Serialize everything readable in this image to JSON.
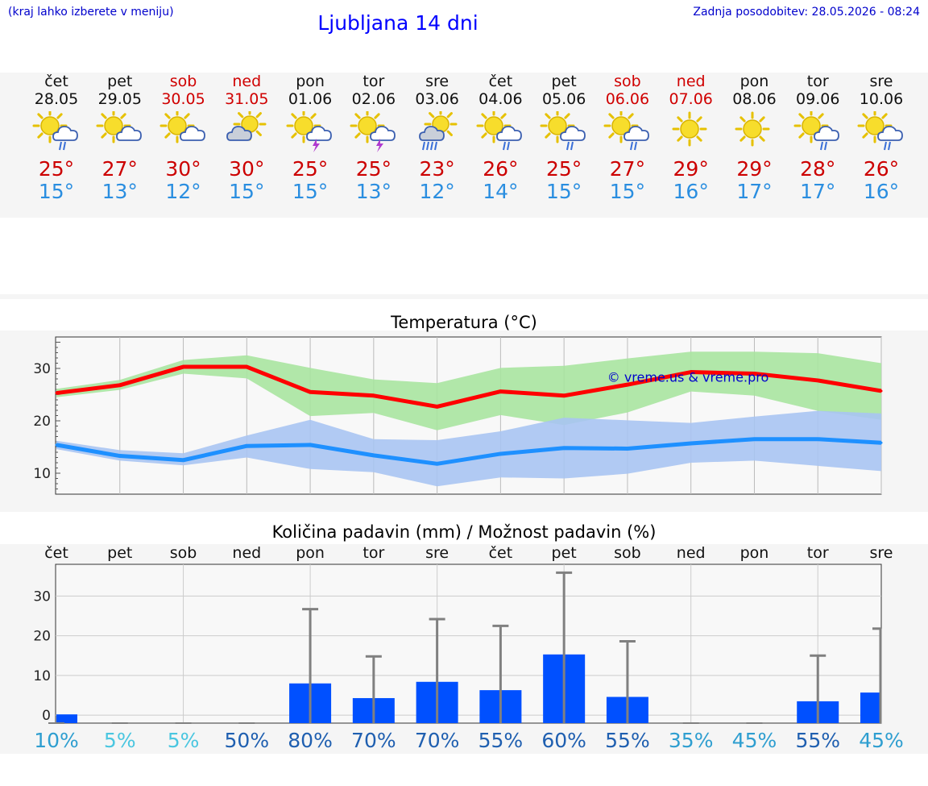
{
  "header": {
    "hint": "(kraj lahko izberete v meniju)",
    "title": "Ljubljana 14 dni",
    "updated": "Zadnja posodobitev: 28.05.2026 - 08:24"
  },
  "days": [
    {
      "name": "čet",
      "date": "28.05",
      "weekend": false,
      "icon": "sun-cloud-rain-icon",
      "kind": "suncloudrain",
      "tmax": "25°",
      "tmin": "15°"
    },
    {
      "name": "pet",
      "date": "29.05",
      "weekend": false,
      "icon": "sun-cloud-icon",
      "kind": "suncloud",
      "tmax": "27°",
      "tmin": "13°"
    },
    {
      "name": "sob",
      "date": "30.05",
      "weekend": true,
      "icon": "sun-cloud-icon",
      "kind": "suncloud",
      "tmax": "30°",
      "tmin": "12°"
    },
    {
      "name": "ned",
      "date": "31.05",
      "weekend": true,
      "icon": "cloud-sun-icon",
      "kind": "cloudsun",
      "tmax": "30°",
      "tmin": "15°"
    },
    {
      "name": "pon",
      "date": "01.06",
      "weekend": false,
      "icon": "sun-cloud-thunder-icon",
      "kind": "suncloudthunder",
      "tmax": "25°",
      "tmin": "15°"
    },
    {
      "name": "tor",
      "date": "02.06",
      "weekend": false,
      "icon": "sun-cloud-thunder-icon",
      "kind": "suncloudthunder",
      "tmax": "25°",
      "tmin": "13°"
    },
    {
      "name": "sre",
      "date": "03.06",
      "weekend": false,
      "icon": "cloud-heavy-rain-icon",
      "kind": "cloudheavyrain",
      "tmax": "23°",
      "tmin": "12°"
    },
    {
      "name": "čet",
      "date": "04.06",
      "weekend": false,
      "icon": "sun-cloud-rain-icon",
      "kind": "suncloudrain",
      "tmax": "26°",
      "tmin": "14°"
    },
    {
      "name": "pet",
      "date": "05.06",
      "weekend": false,
      "icon": "sun-cloud-rain-icon",
      "kind": "suncloudrain",
      "tmax": "25°",
      "tmin": "15°"
    },
    {
      "name": "sob",
      "date": "06.06",
      "weekend": true,
      "icon": "sun-cloud-rain-icon",
      "kind": "suncloudrain",
      "tmax": "27°",
      "tmin": "15°"
    },
    {
      "name": "ned",
      "date": "07.06",
      "weekend": true,
      "icon": "sun-icon",
      "kind": "sun",
      "tmax": "29°",
      "tmin": "16°"
    },
    {
      "name": "pon",
      "date": "08.06",
      "weekend": false,
      "icon": "sun-icon",
      "kind": "sun",
      "tmax": "29°",
      "tmin": "17°"
    },
    {
      "name": "tor",
      "date": "09.06",
      "weekend": false,
      "icon": "sun-cloud-rain-icon",
      "kind": "suncloudrain",
      "tmax": "28°",
      "tmin": "17°"
    },
    {
      "name": "sre",
      "date": "10.06",
      "weekend": false,
      "icon": "sun-cloud-rain-icon",
      "kind": "suncloudrain",
      "tmax": "26°",
      "tmin": "16°"
    }
  ],
  "colors": {
    "max": "#cc0000",
    "min": "#2a8ee0",
    "max_line": "#ff0000",
    "min_line": "#1e90ff",
    "max_band": "#a8e4a0",
    "min_band": "#a9c4f2",
    "precip_bar": "#0050ff",
    "error_bar": "#808080"
  },
  "chart_data": [
    {
      "type": "line",
      "title": "Temperatura (°C)",
      "watermark": "© vreme.us & vreme.pro",
      "x": [
        "28.05",
        "29.05",
        "30.05",
        "31.05",
        "01.06",
        "02.06",
        "03.06",
        "04.06",
        "05.06",
        "06.06",
        "07.06",
        "08.06",
        "09.06",
        "10.06"
      ],
      "ylim": [
        6,
        36
      ],
      "yticks": [
        10,
        20,
        30
      ],
      "grid": true,
      "series": [
        {
          "key": "max",
          "values": [
            25.3,
            26.8,
            30.3,
            30.3,
            25.5,
            24.8,
            22.7,
            25.6,
            24.8,
            26.9,
            29.3,
            29.0,
            27.7,
            25.7
          ],
          "band_low": [
            24.5,
            25.9,
            29.0,
            28.1,
            20.9,
            21.5,
            18.2,
            21.1,
            19.2,
            21.6,
            25.6,
            24.8,
            21.9,
            20.2
          ],
          "band_high": [
            26.1,
            27.8,
            31.6,
            32.5,
            30.1,
            27.9,
            27.2,
            30.1,
            30.5,
            31.9,
            33.2,
            33.2,
            32.9,
            31.0
          ]
        },
        {
          "key": "min",
          "values": [
            15.4,
            13.3,
            12.5,
            15.2,
            15.4,
            13.4,
            11.8,
            13.7,
            14.8,
            14.7,
            15.7,
            16.5,
            16.5,
            15.8
          ],
          "band_low": [
            14.6,
            12.4,
            11.5,
            13.0,
            10.8,
            10.2,
            7.5,
            9.2,
            9.0,
            9.9,
            12.0,
            12.4,
            11.4,
            10.4
          ],
          "band_high": [
            16.2,
            14.4,
            13.8,
            17.2,
            20.2,
            16.5,
            16.3,
            18.0,
            20.6,
            20.1,
            19.6,
            20.8,
            21.9,
            21.4
          ]
        }
      ]
    },
    {
      "type": "bar",
      "title": "Količina padavin (mm) / Možnost padavin (%)",
      "categories": [
        "čet",
        "pet",
        "sob",
        "ned",
        "pon",
        "tor",
        "sre",
        "čet",
        "pet",
        "sob",
        "ned",
        "pon",
        "tor",
        "sre"
      ],
      "ylim": [
        -2,
        38
      ],
      "yticks": [
        0,
        10,
        20,
        30
      ],
      "grid": true,
      "values": [
        0.2,
        0,
        0,
        0,
        8.0,
        4.3,
        8.4,
        6.3,
        15.3,
        4.6,
        0,
        0,
        3.5,
        5.7
      ],
      "error_high": [
        0,
        0,
        0,
        0,
        26.7,
        14.8,
        24.2,
        22.5,
        35.9,
        18.6,
        0,
        0,
        15.0,
        21.8
      ],
      "probability": [
        "10%",
        "5%",
        "5%",
        "50%",
        "80%",
        "70%",
        "70%",
        "55%",
        "60%",
        "55%",
        "35%",
        "45%",
        "55%",
        "45%"
      ],
      "probability_colors": [
        "#2e9ed0",
        "#4ac6e0",
        "#4ac6e0",
        "#1f5fb0",
        "#1f5fb0",
        "#1f5fb0",
        "#1f5fb0",
        "#1f5fb0",
        "#1f5fb0",
        "#1f5fb0",
        "#2e9ed0",
        "#2e9ed0",
        "#1f5fb0",
        "#2e9ed0"
      ]
    }
  ]
}
